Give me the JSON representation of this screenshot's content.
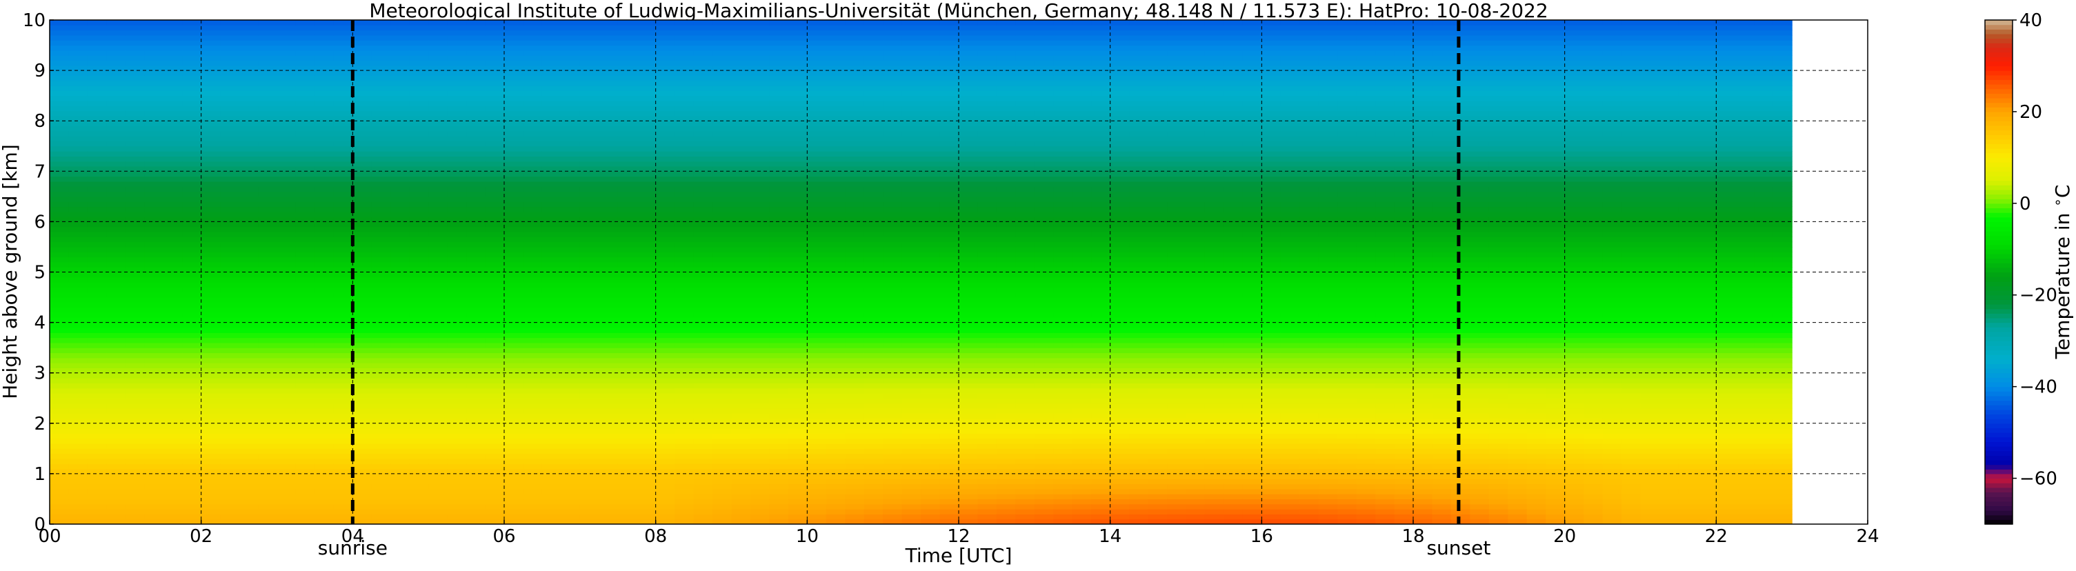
{
  "chart_data": {
    "type": "heatmap",
    "title": "Meteorological Institute of Ludwig-Maximilians-Universität (München, Germany; 48.148 N / 11.573 E):    HatPro: 10-08-2022",
    "xlabel": "Time [UTC]",
    "ylabel": "Height above ground [km]",
    "xlim": [
      0,
      24
    ],
    "ylim": [
      0,
      10
    ],
    "x_ticks": [
      0,
      2,
      4,
      6,
      8,
      10,
      12,
      14,
      16,
      18,
      20,
      22,
      24
    ],
    "x_tick_labels": [
      "00",
      "02",
      "04",
      "06",
      "08",
      "10",
      "12",
      "14",
      "16",
      "18",
      "20",
      "22",
      "24"
    ],
    "y_ticks": [
      0,
      1,
      2,
      3,
      4,
      5,
      6,
      7,
      8,
      9,
      10
    ],
    "y_tick_labels": [
      "0",
      "1",
      "2",
      "3",
      "4",
      "5",
      "6",
      "7",
      "8",
      "9",
      "10"
    ],
    "grid": true,
    "data_x_range": [
      0,
      23
    ],
    "events": [
      {
        "label": "sunrise",
        "x": 4.0
      },
      {
        "label": "sunset",
        "x": 18.6
      }
    ],
    "colorbar": {
      "label": "Temperature in $^\\circ$C",
      "range": [
        -70,
        40
      ],
      "ticks": [
        40,
        20,
        0,
        -20,
        -40,
        -60
      ],
      "tick_labels": [
        "40",
        "20",
        "0",
        "−20",
        "−40",
        "−60"
      ]
    },
    "temperature_profile": {
      "height_km": [
        0,
        0.5,
        1,
        2,
        3,
        4,
        5,
        6,
        7,
        8,
        9,
        10
      ],
      "temp_c_early_morning": [
        18,
        16,
        15,
        8,
        3,
        -4,
        -10,
        -16,
        -24,
        -30,
        -37,
        -44
      ],
      "temp_c_afternoon_max": [
        27,
        22,
        17,
        9,
        3,
        -4,
        -10,
        -16,
        -24,
        -30,
        -37,
        -44
      ]
    }
  }
}
